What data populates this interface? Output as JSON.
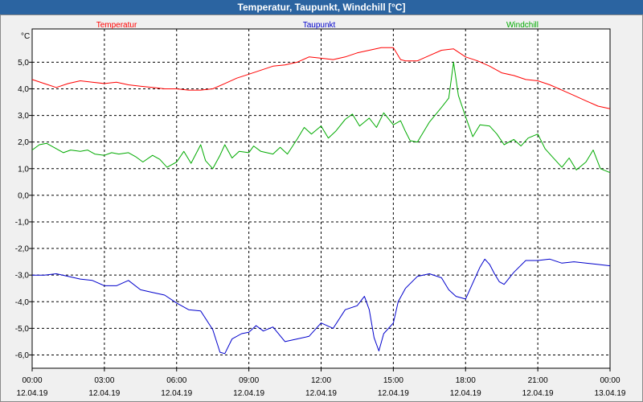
{
  "window": {
    "title": "Temperatur, Taupunkt, Windchill [°C]"
  },
  "chart_data": {
    "type": "line",
    "title": "Temperatur, Taupunkt, Windchill [°C]",
    "ylabel": "°C",
    "ylim": [
      -6.5,
      6.25
    ],
    "grid": true,
    "yticks": [
      5.0,
      4.0,
      3.0,
      2.0,
      1.0,
      0.0,
      -1.0,
      -2.0,
      -3.0,
      -4.0,
      -5.0,
      -6.0
    ],
    "ytick_labels": [
      "5,0",
      "4,0",
      "3,0",
      "2,0",
      "1,0",
      "0,0",
      "-1,0",
      "-2,0",
      "-3,0",
      "-4,0",
      "-5,0",
      "-6,0"
    ],
    "xlim": [
      0,
      24
    ],
    "xticks": [
      {
        "hour": 0,
        "time": "00:00",
        "date": "12.04.19"
      },
      {
        "hour": 3,
        "time": "03:00",
        "date": "12.04.19"
      },
      {
        "hour": 6,
        "time": "06:00",
        "date": "12.04.19"
      },
      {
        "hour": 9,
        "time": "09:00",
        "date": "12.04.19"
      },
      {
        "hour": 12,
        "time": "12:00",
        "date": "12.04.19"
      },
      {
        "hour": 15,
        "time": "15:00",
        "date": "12.04.19"
      },
      {
        "hour": 18,
        "time": "18:00",
        "date": "12.04.19"
      },
      {
        "hour": 21,
        "time": "21:00",
        "date": "12.04.19"
      },
      {
        "hour": 24,
        "time": "00:00",
        "date": "13.04.19"
      }
    ],
    "series": [
      {
        "name": "Temperatur",
        "color": "#ff0000",
        "points": [
          [
            0,
            4.35
          ],
          [
            0.5,
            4.2
          ],
          [
            1,
            4.05
          ],
          [
            1.5,
            4.2
          ],
          [
            2,
            4.3
          ],
          [
            2.5,
            4.25
          ],
          [
            3,
            4.2
          ],
          [
            3.5,
            4.25
          ],
          [
            4,
            4.15
          ],
          [
            4.5,
            4.1
          ],
          [
            5,
            4.05
          ],
          [
            5.5,
            4.0
          ],
          [
            6,
            4.0
          ],
          [
            6.5,
            3.95
          ],
          [
            7,
            3.95
          ],
          [
            7.5,
            4.0
          ],
          [
            8,
            4.2
          ],
          [
            8.5,
            4.4
          ],
          [
            9,
            4.55
          ],
          [
            9.5,
            4.7
          ],
          [
            10,
            4.85
          ],
          [
            10.5,
            4.9
          ],
          [
            11,
            5.0
          ],
          [
            11.5,
            5.2
          ],
          [
            12,
            5.15
          ],
          [
            12.5,
            5.1
          ],
          [
            13,
            5.2
          ],
          [
            13.5,
            5.35
          ],
          [
            14,
            5.45
          ],
          [
            14.5,
            5.55
          ],
          [
            15,
            5.55
          ],
          [
            15.3,
            5.1
          ],
          [
            15.5,
            5.05
          ],
          [
            16,
            5.05
          ],
          [
            16.5,
            5.25
          ],
          [
            17,
            5.45
          ],
          [
            17.5,
            5.5
          ],
          [
            18,
            5.2
          ],
          [
            18.5,
            5.05
          ],
          [
            19,
            4.85
          ],
          [
            19.5,
            4.6
          ],
          [
            20,
            4.5
          ],
          [
            20.5,
            4.35
          ],
          [
            21,
            4.3
          ],
          [
            21.5,
            4.15
          ],
          [
            22,
            3.95
          ],
          [
            22.5,
            3.75
          ],
          [
            23,
            3.55
          ],
          [
            23.5,
            3.35
          ],
          [
            24,
            3.25
          ]
        ]
      },
      {
        "name": "Taupunkt",
        "color": "#0000cc",
        "points": [
          [
            0,
            -3.0
          ],
          [
            0.5,
            -3.0
          ],
          [
            1,
            -2.95
          ],
          [
            1.5,
            -3.05
          ],
          [
            2,
            -3.15
          ],
          [
            2.5,
            -3.2
          ],
          [
            3,
            -3.4
          ],
          [
            3.5,
            -3.4
          ],
          [
            4,
            -3.2
          ],
          [
            4.5,
            -3.55
          ],
          [
            5,
            -3.65
          ],
          [
            5.5,
            -3.75
          ],
          [
            6,
            -4.05
          ],
          [
            6.5,
            -4.3
          ],
          [
            7,
            -4.35
          ],
          [
            7.5,
            -5.05
          ],
          [
            7.8,
            -5.9
          ],
          [
            8,
            -5.95
          ],
          [
            8.3,
            -5.4
          ],
          [
            8.7,
            -5.2
          ],
          [
            9,
            -5.15
          ],
          [
            9.3,
            -4.9
          ],
          [
            9.6,
            -5.1
          ],
          [
            10,
            -4.95
          ],
          [
            10.5,
            -5.5
          ],
          [
            11,
            -5.4
          ],
          [
            11.5,
            -5.3
          ],
          [
            12,
            -4.8
          ],
          [
            12.5,
            -5.0
          ],
          [
            13,
            -4.3
          ],
          [
            13.5,
            -4.15
          ],
          [
            13.8,
            -3.8
          ],
          [
            14,
            -4.3
          ],
          [
            14.2,
            -5.35
          ],
          [
            14.4,
            -5.85
          ],
          [
            14.6,
            -5.2
          ],
          [
            15,
            -4.8
          ],
          [
            15.2,
            -4.0
          ],
          [
            15.5,
            -3.5
          ],
          [
            16,
            -3.05
          ],
          [
            16.5,
            -2.95
          ],
          [
            17,
            -3.1
          ],
          [
            17.3,
            -3.55
          ],
          [
            17.6,
            -3.8
          ],
          [
            18,
            -3.9
          ],
          [
            18.3,
            -3.3
          ],
          [
            18.6,
            -2.7
          ],
          [
            18.8,
            -2.4
          ],
          [
            19,
            -2.6
          ],
          [
            19.2,
            -2.95
          ],
          [
            19.4,
            -3.25
          ],
          [
            19.6,
            -3.35
          ],
          [
            20,
            -2.9
          ],
          [
            20.5,
            -2.45
          ],
          [
            21,
            -2.45
          ],
          [
            21.5,
            -2.4
          ],
          [
            22,
            -2.55
          ],
          [
            22.5,
            -2.5
          ],
          [
            23,
            -2.55
          ],
          [
            23.5,
            -2.6
          ],
          [
            24,
            -2.65
          ]
        ]
      },
      {
        "name": "Windchill",
        "color": "#00aa00",
        "points": [
          [
            0,
            1.7
          ],
          [
            0.3,
            1.9
          ],
          [
            0.6,
            1.95
          ],
          [
            1,
            1.75
          ],
          [
            1.3,
            1.6
          ],
          [
            1.6,
            1.7
          ],
          [
            2,
            1.65
          ],
          [
            2.3,
            1.7
          ],
          [
            2.6,
            1.55
          ],
          [
            3,
            1.5
          ],
          [
            3.3,
            1.6
          ],
          [
            3.6,
            1.55
          ],
          [
            4,
            1.6
          ],
          [
            4.3,
            1.45
          ],
          [
            4.6,
            1.25
          ],
          [
            5,
            1.5
          ],
          [
            5.3,
            1.35
          ],
          [
            5.6,
            1.05
          ],
          [
            6,
            1.25
          ],
          [
            6.3,
            1.65
          ],
          [
            6.6,
            1.2
          ],
          [
            7,
            1.9
          ],
          [
            7.2,
            1.3
          ],
          [
            7.5,
            1.0
          ],
          [
            7.8,
            1.5
          ],
          [
            8,
            1.9
          ],
          [
            8.3,
            1.4
          ],
          [
            8.6,
            1.65
          ],
          [
            9,
            1.6
          ],
          [
            9.2,
            1.85
          ],
          [
            9.5,
            1.65
          ],
          [
            10,
            1.55
          ],
          [
            10.3,
            1.8
          ],
          [
            10.6,
            1.55
          ],
          [
            11,
            2.1
          ],
          [
            11.3,
            2.55
          ],
          [
            11.6,
            2.3
          ],
          [
            12,
            2.6
          ],
          [
            12.3,
            2.15
          ],
          [
            12.6,
            2.4
          ],
          [
            13,
            2.85
          ],
          [
            13.3,
            3.05
          ],
          [
            13.6,
            2.6
          ],
          [
            14,
            2.9
          ],
          [
            14.3,
            2.55
          ],
          [
            14.6,
            3.1
          ],
          [
            15,
            2.65
          ],
          [
            15.3,
            2.8
          ],
          [
            15.5,
            2.4
          ],
          [
            15.7,
            2.05
          ],
          [
            16,
            2.0
          ],
          [
            16.5,
            2.75
          ],
          [
            17,
            3.3
          ],
          [
            17.3,
            3.65
          ],
          [
            17.5,
            5.0
          ],
          [
            17.7,
            3.75
          ],
          [
            18,
            2.95
          ],
          [
            18.3,
            2.2
          ],
          [
            18.6,
            2.65
          ],
          [
            19,
            2.6
          ],
          [
            19.3,
            2.3
          ],
          [
            19.6,
            1.9
          ],
          [
            20,
            2.1
          ],
          [
            20.3,
            1.85
          ],
          [
            20.6,
            2.15
          ],
          [
            21,
            2.3
          ],
          [
            21.3,
            1.75
          ],
          [
            21.6,
            1.45
          ],
          [
            22,
            1.05
          ],
          [
            22.3,
            1.4
          ],
          [
            22.6,
            0.95
          ],
          [
            23,
            1.25
          ],
          [
            23.3,
            1.7
          ],
          [
            23.6,
            1.0
          ],
          [
            24,
            0.85
          ]
        ]
      }
    ]
  }
}
